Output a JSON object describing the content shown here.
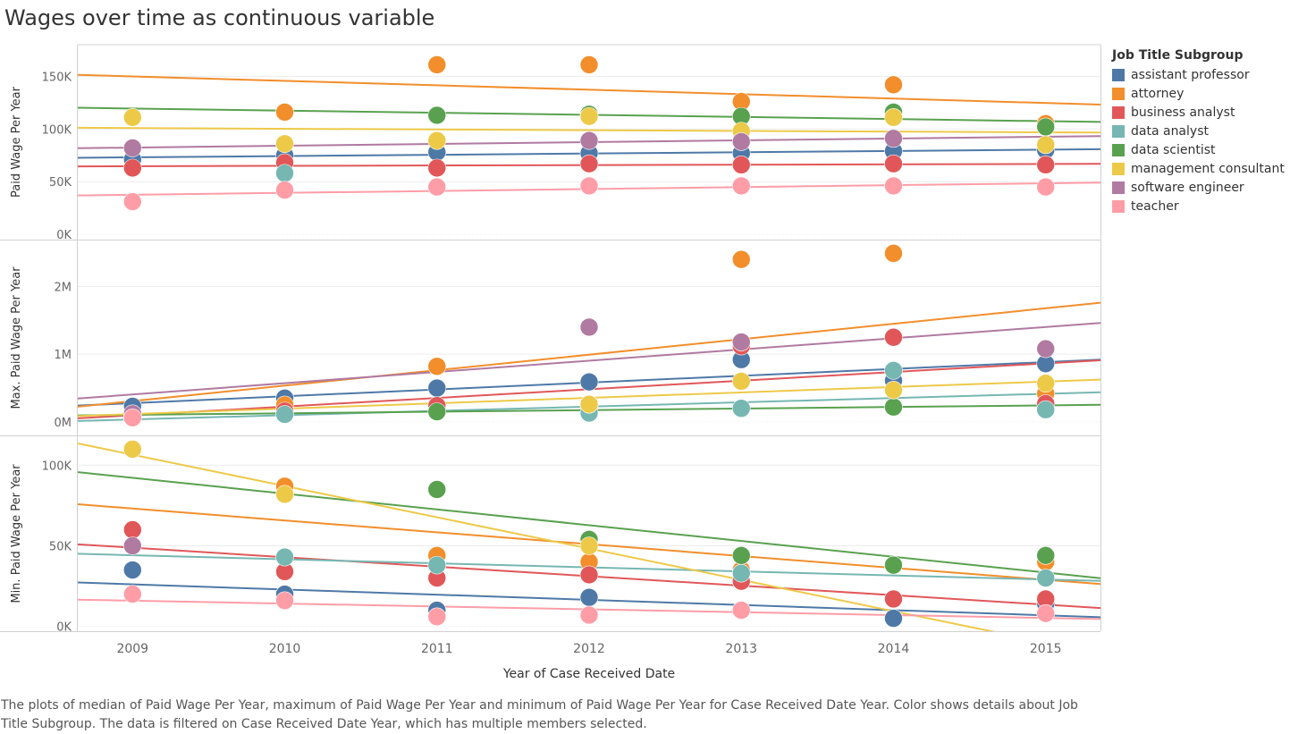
{
  "title": "Wages over time as continuous variable",
  "caption": "The plots of median of Paid Wage Per Year, maximum of Paid Wage Per Year and minimum of Paid Wage Per Year for Case Received Date Year.  Color shows details about Job Title Subgroup. The data is filtered on Case Received Date Year, which has multiple members selected.",
  "legend": {
    "title": "Job Title Subgroup",
    "items": [
      {
        "label": "assistant professor",
        "color": "#4e79a7"
      },
      {
        "label": "attorney",
        "color": "#f28e2b"
      },
      {
        "label": "business analyst",
        "color": "#e15759"
      },
      {
        "label": "data analyst",
        "color": "#76b7b2"
      },
      {
        "label": "data scientist",
        "color": "#59a14f"
      },
      {
        "label": "management consultant",
        "color": "#edc948"
      },
      {
        "label": "software engineer",
        "color": "#b07aa1"
      },
      {
        "label": "teacher",
        "color": "#ff9da7"
      }
    ]
  },
  "chart_data": {
    "type": "scatter",
    "xlabel": "Year of Case Received Date",
    "x": [
      2009,
      2010,
      2011,
      2012,
      2013,
      2014,
      2015
    ],
    "x_ticks": [
      "2009",
      "2010",
      "2011",
      "2012",
      "2013",
      "2014",
      "2015"
    ],
    "xlim": [
      2008.64,
      2015.36
    ],
    "trend_lines": true,
    "panels": [
      {
        "ylabel": "Paid Wage Per Year",
        "ylim": [
          -5000,
          180000
        ],
        "y_ticks": [
          0,
          50000,
          100000,
          150000
        ],
        "y_tick_labels": [
          "0K",
          "50K",
          "100K",
          "150K"
        ],
        "series": [
          {
            "name": "assistant professor",
            "values": [
              71000,
              75000,
              78000,
              77000,
              77000,
              79000,
              80000
            ]
          },
          {
            "name": "attorney",
            "values": [
              null,
              116000,
              161000,
              161000,
              126000,
              142000,
              105000
            ]
          },
          {
            "name": "business analyst",
            "values": [
              63000,
              68000,
              63000,
              67000,
              66000,
              67000,
              66000
            ]
          },
          {
            "name": "data analyst",
            "values": [
              null,
              58000,
              null,
              null,
              null,
              null,
              null
            ]
          },
          {
            "name": "data scientist",
            "values": [
              null,
              null,
              113000,
              114000,
              112000,
              116000,
              102000
            ]
          },
          {
            "name": "management consultant",
            "values": [
              111000,
              86000,
              89000,
              112000,
              98000,
              111000,
              85000
            ]
          },
          {
            "name": "software engineer",
            "values": [
              82000,
              null,
              null,
              89000,
              88000,
              91000,
              null
            ]
          },
          {
            "name": "teacher",
            "values": [
              31000,
              42000,
              45000,
              46000,
              46000,
              46000,
              45000
            ]
          }
        ]
      },
      {
        "ylabel": "Max. Paid Wage Per Year",
        "ylim": [
          -200000,
          2680000
        ],
        "y_ticks": [
          0,
          1000000,
          2000000
        ],
        "y_tick_labels": [
          "0M",
          "1M",
          "2M"
        ],
        "series": [
          {
            "name": "assistant professor",
            "values": [
              230000,
              350000,
              500000,
              590000,
              920000,
              610000,
              860000
            ]
          },
          {
            "name": "attorney",
            "values": [
              null,
              250000,
              820000,
              260000,
              2400000,
              2490000,
              420000
            ]
          },
          {
            "name": "business analyst",
            "values": [
              null,
              160000,
              240000,
              230000,
              1120000,
              1250000,
              270000
            ]
          },
          {
            "name": "data analyst",
            "values": [
              null,
              110000,
              null,
              130000,
              200000,
              760000,
              180000
            ]
          },
          {
            "name": "data scientist",
            "values": [
              null,
              null,
              150000,
              null,
              null,
              220000,
              null
            ]
          },
          {
            "name": "management consultant",
            "values": [
              null,
              null,
              null,
              260000,
              600000,
              470000,
              570000
            ]
          },
          {
            "name": "software engineer",
            "values": [
              120000,
              null,
              null,
              1400000,
              1180000,
              null,
              1080000
            ]
          },
          {
            "name": "teacher",
            "values": [
              60000,
              null,
              null,
              null,
              null,
              null,
              null
            ]
          }
        ]
      },
      {
        "ylabel": "Min. Paid Wage Per Year",
        "ylim": [
          -3000,
          118000
        ],
        "y_ticks": [
          0,
          50000,
          100000
        ],
        "y_tick_labels": [
          "0K",
          "50K",
          "100K"
        ],
        "series": [
          {
            "name": "assistant professor",
            "values": [
              35000,
              20000,
              10000,
              18000,
              null,
              5000,
              14000
            ]
          },
          {
            "name": "attorney",
            "values": [
              null,
              87000,
              44000,
              40000,
              35000,
              38000,
              40000
            ]
          },
          {
            "name": "business analyst",
            "values": [
              60000,
              34000,
              30000,
              32000,
              28000,
              17000,
              17000
            ]
          },
          {
            "name": "data analyst",
            "values": [
              null,
              43000,
              38000,
              null,
              33000,
              null,
              30000
            ]
          },
          {
            "name": "data scientist",
            "values": [
              null,
              null,
              85000,
              54000,
              44000,
              38000,
              44000
            ]
          },
          {
            "name": "management consultant",
            "values": [
              110000,
              82000,
              null,
              50000,
              null,
              null,
              null
            ]
          },
          {
            "name": "software engineer",
            "values": [
              50000,
              null,
              null,
              null,
              null,
              null,
              null
            ]
          },
          {
            "name": "teacher",
            "values": [
              20000,
              16000,
              6000,
              7000,
              10000,
              null,
              8000
            ]
          }
        ]
      }
    ]
  }
}
